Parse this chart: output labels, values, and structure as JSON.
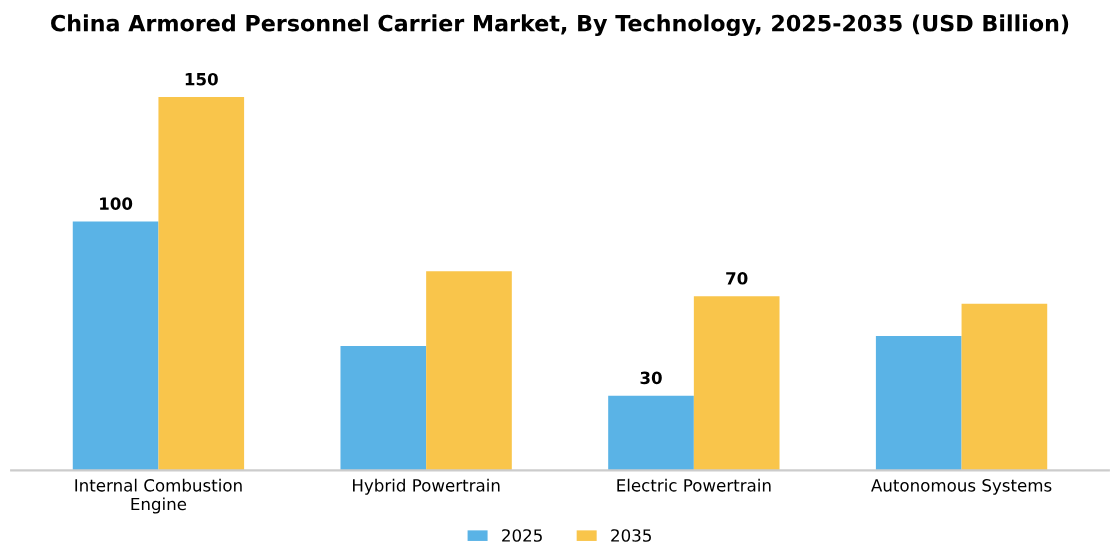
{
  "chart_data": {
    "type": "bar",
    "title": "China Armored Personnel Carrier Market, By Technology, 2025-2035 (USD Billion)",
    "categories": [
      "Internal Combustion\nEngine",
      "Hybrid Powertrain",
      "Electric Powertrain",
      "Autonomous Systems"
    ],
    "series": [
      {
        "name": "2025",
        "color": "#5ab3e6",
        "values": [
          100,
          50,
          30,
          54
        ],
        "value_labels": [
          "100",
          null,
          "30",
          null
        ]
      },
      {
        "name": "2035",
        "color": "#f9c54b",
        "values": [
          150,
          80,
          70,
          67
        ],
        "value_labels": [
          "150",
          null,
          "70",
          null
        ]
      }
    ],
    "legend": "bottom",
    "grid": false
  }
}
